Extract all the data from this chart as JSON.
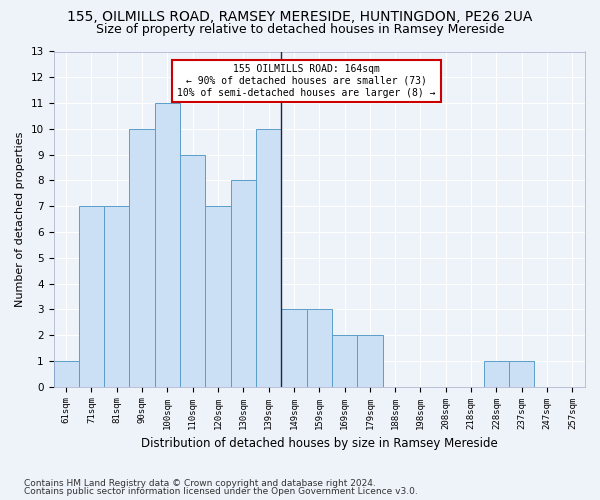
{
  "title1": "155, OILMILLS ROAD, RAMSEY MERESIDE, HUNTINGDON, PE26 2UA",
  "title2": "Size of property relative to detached houses in Ramsey Mereside",
  "xlabel": "Distribution of detached houses by size in Ramsey Mereside",
  "ylabel": "Number of detached properties",
  "footer1": "Contains HM Land Registry data © Crown copyright and database right 2024.",
  "footer2": "Contains public sector information licensed under the Open Government Licence v3.0.",
  "categories": [
    "61sqm",
    "71sqm",
    "81sqm",
    "90sqm",
    "100sqm",
    "110sqm",
    "120sqm",
    "130sqm",
    "139sqm",
    "149sqm",
    "159sqm",
    "169sqm",
    "179sqm",
    "188sqm",
    "198sqm",
    "208sqm",
    "218sqm",
    "228sqm",
    "237sqm",
    "247sqm",
    "257sqm"
  ],
  "values": [
    1,
    7,
    7,
    10,
    11,
    9,
    7,
    8,
    10,
    3,
    3,
    2,
    2,
    0,
    0,
    0,
    0,
    1,
    1,
    0,
    0
  ],
  "bar_color": "#cce0f5",
  "bar_edge_color": "#5a9ec9",
  "annotation_text": "155 OILMILLS ROAD: 164sqm\n← 90% of detached houses are smaller (73)\n10% of semi-detached houses are larger (8) →",
  "vline_x_index": 8.5,
  "ylim": [
    0,
    13
  ],
  "yticks": [
    0,
    1,
    2,
    3,
    4,
    5,
    6,
    7,
    8,
    9,
    10,
    11,
    12,
    13
  ],
  "bg_color": "#eef2f9",
  "grid_color": "#ffffff",
  "annotation_box_color": "#ffffff",
  "annotation_box_edge": "#cc0000",
  "title1_fontsize": 10,
  "title2_fontsize": 9,
  "xlabel_fontsize": 8.5,
  "ylabel_fontsize": 8,
  "footer_fontsize": 6.5
}
